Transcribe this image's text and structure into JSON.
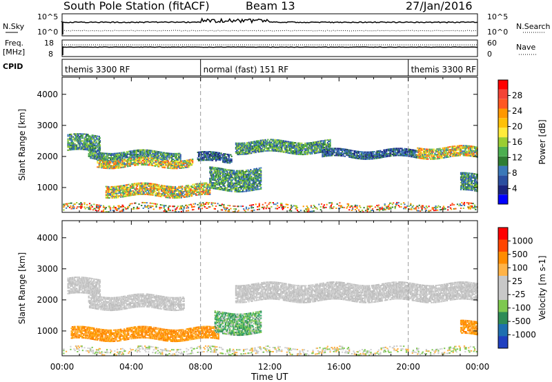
{
  "header": {
    "station": "South Pole Station (fitACF)",
    "beam": "Beam 13",
    "date": "27/Jan/2016"
  },
  "summary": {
    "nsky_label": "N.Sky",
    "nsearch_label": "N.Search",
    "freq_label_1": "Freq.",
    "freq_label_2": "[MHz]",
    "nave_label": "Nave",
    "cpid_label": "CPID",
    "nsky_ticks": [
      "10^5",
      "10^0"
    ],
    "nsearch_ticks": [
      "10^5",
      "10^0"
    ],
    "freq_ticks": [
      "18",
      "8"
    ],
    "nave_ticks": [
      "60",
      "0"
    ],
    "cpid_segments": [
      {
        "label": "themis 3300 RF",
        "start_h": 0,
        "end_h": 8
      },
      {
        "label": "normal (fast) 151 RF",
        "start_h": 8,
        "end_h": 20
      },
      {
        "label": "themis 3300 RF",
        "start_h": 20,
        "end_h": 24
      }
    ]
  },
  "chart_data": [
    {
      "type": "heatmap",
      "panel": "power",
      "ylabel": "Slant Range [km]",
      "xlabel": "",
      "xlim": [
        0,
        24
      ],
      "ylim": [
        200,
        4550
      ],
      "yticks": [
        1000,
        2000,
        3000,
        4000
      ],
      "colorbar": {
        "label": "Power [dB]",
        "ticks": [
          "28",
          "24",
          "20",
          "16",
          "12",
          "8",
          "4"
        ],
        "colors": [
          "#0000ff",
          "#1a237e",
          "#2a4ea0",
          "#3a78b8",
          "#2e7d32",
          "#4caf50",
          "#9acd32",
          "#ffeb3b",
          "#ffc107",
          "#ff9800",
          "#ff5722",
          "#f44336",
          "#ff0000"
        ]
      },
      "bands": [
        {
          "t0": 0.3,
          "t1": 2.2,
          "r0": 2150,
          "r1": 2650,
          "level": "mid"
        },
        {
          "t0": 1.5,
          "t1": 6.8,
          "r0": 1900,
          "r1": 2150,
          "level": "mid"
        },
        {
          "t0": 2.0,
          "t1": 7.5,
          "r0": 1650,
          "r1": 1900,
          "level": "high"
        },
        {
          "t0": 7.8,
          "t1": 9.8,
          "r0": 1800,
          "r1": 2100,
          "level": "low"
        },
        {
          "t0": 8.5,
          "t1": 11.5,
          "r0": 900,
          "r1": 1600,
          "level": "mid"
        },
        {
          "t0": 2.5,
          "t1": 8.5,
          "r0": 700,
          "r1": 1100,
          "level": "high"
        },
        {
          "t0": 10.0,
          "t1": 15.5,
          "r0": 2100,
          "r1": 2500,
          "level": "mid"
        },
        {
          "t0": 15.0,
          "t1": 20.5,
          "r0": 1950,
          "r1": 2200,
          "level": "low"
        },
        {
          "t0": 20.5,
          "t1": 24.0,
          "r0": 1950,
          "r1": 2300,
          "level": "high"
        },
        {
          "t0": 23.0,
          "t1": 24.0,
          "r0": 850,
          "r1": 1400,
          "level": "mid"
        },
        {
          "t0": 0,
          "t1": 24,
          "r0": 250,
          "r1": 450,
          "level": "sparse"
        }
      ]
    },
    {
      "type": "heatmap",
      "panel": "velocity",
      "ylabel": "Slant Range [km]",
      "xlabel": "Time UT",
      "xlim": [
        0,
        24
      ],
      "ylim": [
        200,
        4550
      ],
      "yticks": [
        1000,
        2000,
        3000,
        4000
      ],
      "xticks": [
        "00:00",
        "04:00",
        "08:00",
        "12:00",
        "16:00",
        "20:00",
        "00:00"
      ],
      "colorbar": {
        "label": "Velocity [m s-1]",
        "ticks": [
          "1000",
          "500",
          "100",
          "25",
          "-25",
          "-100",
          "-500",
          "-1000"
        ],
        "colors": [
          "#2040c0",
          "#1f6fb0",
          "#2e8b57",
          "#7ec850",
          "#c8c8c8",
          "#c8c8c8",
          "#ffb347",
          "#ff8c00",
          "#ff4500",
          "#ff0000"
        ]
      },
      "bands": [
        {
          "t0": 0.3,
          "t1": 2.2,
          "r0": 2150,
          "r1": 2650,
          "level": "grey"
        },
        {
          "t0": 1.5,
          "t1": 7.0,
          "r0": 1700,
          "r1": 2150,
          "level": "grey"
        },
        {
          "t0": 10.0,
          "t1": 24.0,
          "r0": 1950,
          "r1": 2500,
          "level": "grey"
        },
        {
          "t0": 0.5,
          "t1": 9.0,
          "r0": 700,
          "r1": 1100,
          "level": "orange"
        },
        {
          "t0": 8.8,
          "t1": 11.5,
          "r0": 900,
          "r1": 1600,
          "level": "green"
        },
        {
          "t0": 23.0,
          "t1": 24.0,
          "r0": 850,
          "r1": 1300,
          "level": "orange"
        },
        {
          "t0": 0,
          "t1": 24,
          "r0": 250,
          "r1": 450,
          "level": "sparse"
        }
      ]
    }
  ]
}
